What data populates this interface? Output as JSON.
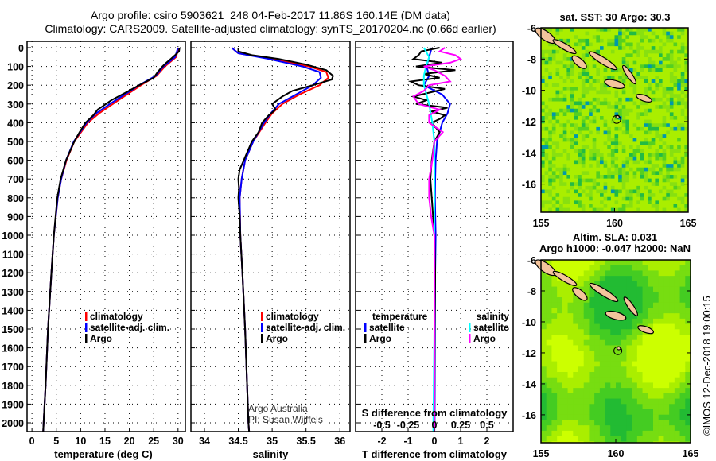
{
  "header": {
    "title_line1": "Argo profile: csiro 5903621_248 04-Feb-2017 11.86S 160.14E (DM data)",
    "title_line2": "Climatology: CARS2009. Satellite-adjusted climatology: synTS_20170204.nc (0.66d earlier)"
  },
  "colors": {
    "climatology": "#ff0000",
    "satellite": "#0000ff",
    "argo": "#000000",
    "sal_satellite": "#00ffff",
    "sal_argo": "#ff00ff"
  },
  "credits": {
    "line1": "Argo Australia",
    "line2": "PI: Susan Wijffels",
    "stamp": "©IMOS 12-Dec-2018 19:00:15"
  },
  "chart_data": [
    {
      "type": "line",
      "xlabel": "temperature (deg C)",
      "ylabel": "",
      "xlim": [
        -1,
        31.5
      ],
      "ylim": [
        2050,
        -30
      ],
      "xticks": [
        0,
        5,
        10,
        15,
        20,
        25,
        30
      ],
      "yticks": [
        0,
        100,
        200,
        300,
        400,
        500,
        600,
        700,
        800,
        900,
        1000,
        1100,
        1200,
        1300,
        1400,
        1500,
        1600,
        1700,
        1800,
        1900,
        2000
      ],
      "legend": [
        "climatology",
        "satellite-adj. clim.",
        "Argo"
      ],
      "series": [
        {
          "name": "climatology",
          "depth": [
            0,
            50,
            100,
            150,
            200,
            250,
            300,
            350,
            400,
            500,
            600,
            700,
            800,
            1000,
            1200,
            1500,
            1800,
            2000,
            2050
          ],
          "values": [
            30.1,
            29.6,
            27.3,
            25.6,
            22.4,
            19.5,
            16.6,
            13.8,
            11.5,
            8.7,
            7.1,
            6.0,
            5.3,
            4.5,
            4.0,
            3.3,
            2.8,
            2.4,
            2.3
          ]
        },
        {
          "name": "satellite-adj. clim.",
          "depth": [
            0,
            50,
            100,
            150,
            200,
            250,
            300,
            350,
            400,
            500,
            600,
            700,
            800,
            1000,
            1200,
            1500,
            1800,
            2000,
            2050
          ],
          "values": [
            30.0,
            29.4,
            27.0,
            25.4,
            22.0,
            19.0,
            16.0,
            13.2,
            11.2,
            8.6,
            7.0,
            6.0,
            5.3,
            4.5,
            4.0,
            3.3,
            2.8,
            2.4,
            2.3
          ]
        },
        {
          "name": "Argo",
          "depth": [
            0,
            20,
            40,
            60,
            80,
            100,
            130,
            160,
            200,
            240,
            280,
            300,
            330,
            360,
            400,
            450,
            500,
            600,
            700,
            800,
            1000,
            1200,
            1500,
            1800,
            2000,
            2050
          ],
          "values": [
            30.3,
            30.2,
            29.4,
            28.5,
            27.6,
            26.8,
            25.8,
            25.0,
            22.0,
            19.2,
            16.3,
            15.2,
            13.5,
            12.6,
            11.0,
            9.8,
            8.7,
            7.0,
            5.9,
            5.2,
            4.5,
            4.0,
            3.3,
            2.8,
            2.4,
            2.3
          ]
        }
      ]
    },
    {
      "type": "line",
      "xlabel": "salinity",
      "xlim": [
        33.8,
        36.15
      ],
      "ylim": [
        2050,
        -30
      ],
      "xticks": [
        34,
        34.5,
        35,
        35.5,
        36
      ],
      "legend": [
        "climatology",
        "satellite-adj. clim.",
        "Argo"
      ],
      "series": [
        {
          "name": "climatology",
          "depth": [
            0,
            30,
            60,
            100,
            130,
            160,
            200,
            250,
            300,
            350,
            400,
            500,
            600,
            700,
            800,
            1000,
            1200,
            1500,
            2000,
            2050
          ],
          "values": [
            34.4,
            34.5,
            35.0,
            35.55,
            35.8,
            35.83,
            35.7,
            35.4,
            35.15,
            35.0,
            34.9,
            34.72,
            34.6,
            34.55,
            34.52,
            34.53,
            34.56,
            34.6,
            34.65,
            34.66
          ]
        },
        {
          "name": "satellite-adj. clim.",
          "depth": [
            0,
            30,
            60,
            100,
            130,
            160,
            200,
            250,
            300,
            350,
            400,
            500,
            600,
            700,
            800,
            1000,
            1200,
            1500,
            2000,
            2050
          ],
          "values": [
            34.4,
            34.5,
            34.95,
            35.45,
            35.7,
            35.72,
            35.6,
            35.35,
            35.1,
            34.98,
            34.88,
            34.72,
            34.6,
            34.55,
            34.52,
            34.53,
            34.56,
            34.6,
            34.65,
            34.66
          ]
        },
        {
          "name": "Argo",
          "depth": [
            0,
            20,
            40,
            60,
            90,
            120,
            150,
            170,
            200,
            230,
            260,
            300,
            330,
            360,
            400,
            450,
            500,
            600,
            650,
            700,
            750,
            800,
            900,
            1000,
            1200,
            1500,
            2000,
            2050
          ],
          "values": [
            34.5,
            34.5,
            34.7,
            35.1,
            35.5,
            35.8,
            35.9,
            35.88,
            35.6,
            35.3,
            35.15,
            35.0,
            35.05,
            34.95,
            34.85,
            34.8,
            34.7,
            34.58,
            34.52,
            34.5,
            34.51,
            34.5,
            34.52,
            34.53,
            34.56,
            34.6,
            34.65,
            34.66
          ]
        }
      ]
    },
    {
      "type": "line",
      "xlabel": "T difference from climatology",
      "xlabel2": "S difference from climatology",
      "xlim": [
        -3,
        3
      ],
      "x2lim": [
        -0.75,
        0.75
      ],
      "ylim": [
        2050,
        -30
      ],
      "xticks": [
        -2,
        -1,
        0,
        1,
        2
      ],
      "x2ticks": [
        "-0.5",
        "-0.25",
        "0",
        "0.25",
        "0.5"
      ],
      "legend_temperature": {
        "title": "temperature",
        "items": [
          "satellite",
          "Argo"
        ]
      },
      "legend_salinity": {
        "title": "salinity",
        "items": [
          "satellite",
          "Argo"
        ]
      },
      "series": [
        {
          "name": "temperature satellite",
          "depth": [
            0,
            50,
            100,
            150,
            200,
            250,
            300,
            350,
            400,
            500,
            600,
            700,
            800,
            1000,
            1200,
            1500,
            2000,
            2050
          ],
          "values": [
            -0.1,
            -0.2,
            -0.3,
            -0.2,
            -0.4,
            0.3,
            0.6,
            0.5,
            0.3,
            0.1,
            0.05,
            0.03,
            0.02,
            0.05,
            0.03,
            0.02,
            0.01,
            0.0
          ]
        },
        {
          "name": "temperature Argo",
          "depth": [
            0,
            20,
            40,
            60,
            80,
            100,
            120,
            140,
            160,
            180,
            200,
            220,
            240,
            260,
            280,
            300,
            320,
            340,
            360,
            380,
            400,
            450,
            500,
            600,
            700,
            800,
            1000,
            1200,
            1500,
            2000,
            2050
          ],
          "values": [
            0.2,
            -0.5,
            -0.6,
            -0.8,
            0.3,
            -0.7,
            0.8,
            -0.4,
            0.2,
            -0.9,
            -0.6,
            0.4,
            -0.2,
            -0.8,
            -0.3,
            -0.7,
            0.5,
            -0.1,
            0.4,
            0.2,
            -0.1,
            0.2,
            0.0,
            -0.1,
            -0.15,
            -0.1,
            0.0,
            0.03,
            0.01,
            0.0,
            0.0
          ]
        },
        {
          "name": "salinity satellite",
          "depth": [
            0,
            50,
            100,
            150,
            200,
            300,
            400,
            500,
            700,
            1000,
            1500,
            2000,
            2050
          ],
          "values": [
            -0.1,
            -0.05,
            -0.08,
            -0.1,
            -0.1,
            -0.05,
            -0.02,
            0.0,
            0.0,
            0.0,
            0.0,
            -0.01,
            -0.01
          ]
        },
        {
          "name": "salinity Argo",
          "depth": [
            0,
            20,
            40,
            60,
            80,
            100,
            120,
            150,
            180,
            200,
            230,
            260,
            300,
            330,
            360,
            400,
            450,
            500,
            600,
            700,
            800,
            900,
            1000,
            1200,
            1500,
            2000,
            2050
          ],
          "values": [
            0.1,
            0.05,
            0.2,
            0.25,
            0.15,
            -0.1,
            0.0,
            0.1,
            0.15,
            -0.05,
            -0.1,
            -0.2,
            -0.15,
            0.05,
            -0.05,
            -0.05,
            0.08,
            0.0,
            -0.02,
            -0.05,
            -0.05,
            -0.03,
            0.0,
            0.0,
            0.0,
            0.0,
            0.0
          ]
        }
      ]
    },
    {
      "type": "heatmap",
      "title": "sat. SST: 30 Argo: 30.3",
      "xlim": [
        155,
        165
      ],
      "ylim": [
        -17.8,
        -6
      ],
      "xticks": [
        155,
        160,
        165
      ],
      "yticks": [
        -6,
        -8,
        -10,
        -12,
        -14,
        -16
      ]
    },
    {
      "type": "heatmap",
      "title": "Altim. SLA: 0.031",
      "subtitle": "Argo h1000: -0.047 h2000: NaN",
      "xlim": [
        155,
        165
      ],
      "ylim": [
        -17.8,
        -6
      ],
      "xticks": [
        155,
        160,
        165
      ],
      "yticks": [
        -6,
        -8,
        -10,
        -12,
        -14,
        -16
      ]
    }
  ]
}
